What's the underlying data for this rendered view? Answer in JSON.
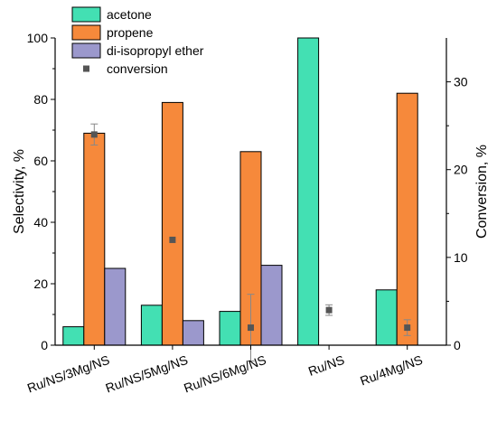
{
  "chart_data": {
    "type": "bar",
    "categories": [
      "Ru/NS/3Mg/NS",
      "Ru/NS/5Mg/NS",
      "Ru/NS/6Mg/NS",
      "Ru/NS",
      "Ru/4Mg/NS"
    ],
    "series": [
      {
        "name": "acetone",
        "color": "#43e0b3",
        "values": [
          6,
          13,
          11,
          100,
          18
        ]
      },
      {
        "name": "propene",
        "color": "#f6893b",
        "values": [
          69,
          79,
          63,
          0,
          82
        ]
      },
      {
        "name": "di-isopropyl ether",
        "color": "#9b98cc",
        "values": [
          25,
          8,
          26,
          0,
          0
        ]
      }
    ],
    "conversion": {
      "name": "conversion",
      "color": "#555555",
      "values": [
        24,
        12,
        2,
        4,
        2
      ],
      "errors": [
        1.2,
        0,
        3.8,
        0.6,
        0.9
      ]
    },
    "ylabel": "Selectivity, %",
    "y2label": "Conversion, %",
    "ylim": [
      0,
      100
    ],
    "y2lim": [
      0,
      35
    ],
    "yticks": [
      0,
      20,
      40,
      60,
      80,
      100
    ],
    "y2ticks": [
      0,
      10,
      20,
      30
    ],
    "legend_position": "top-left"
  }
}
